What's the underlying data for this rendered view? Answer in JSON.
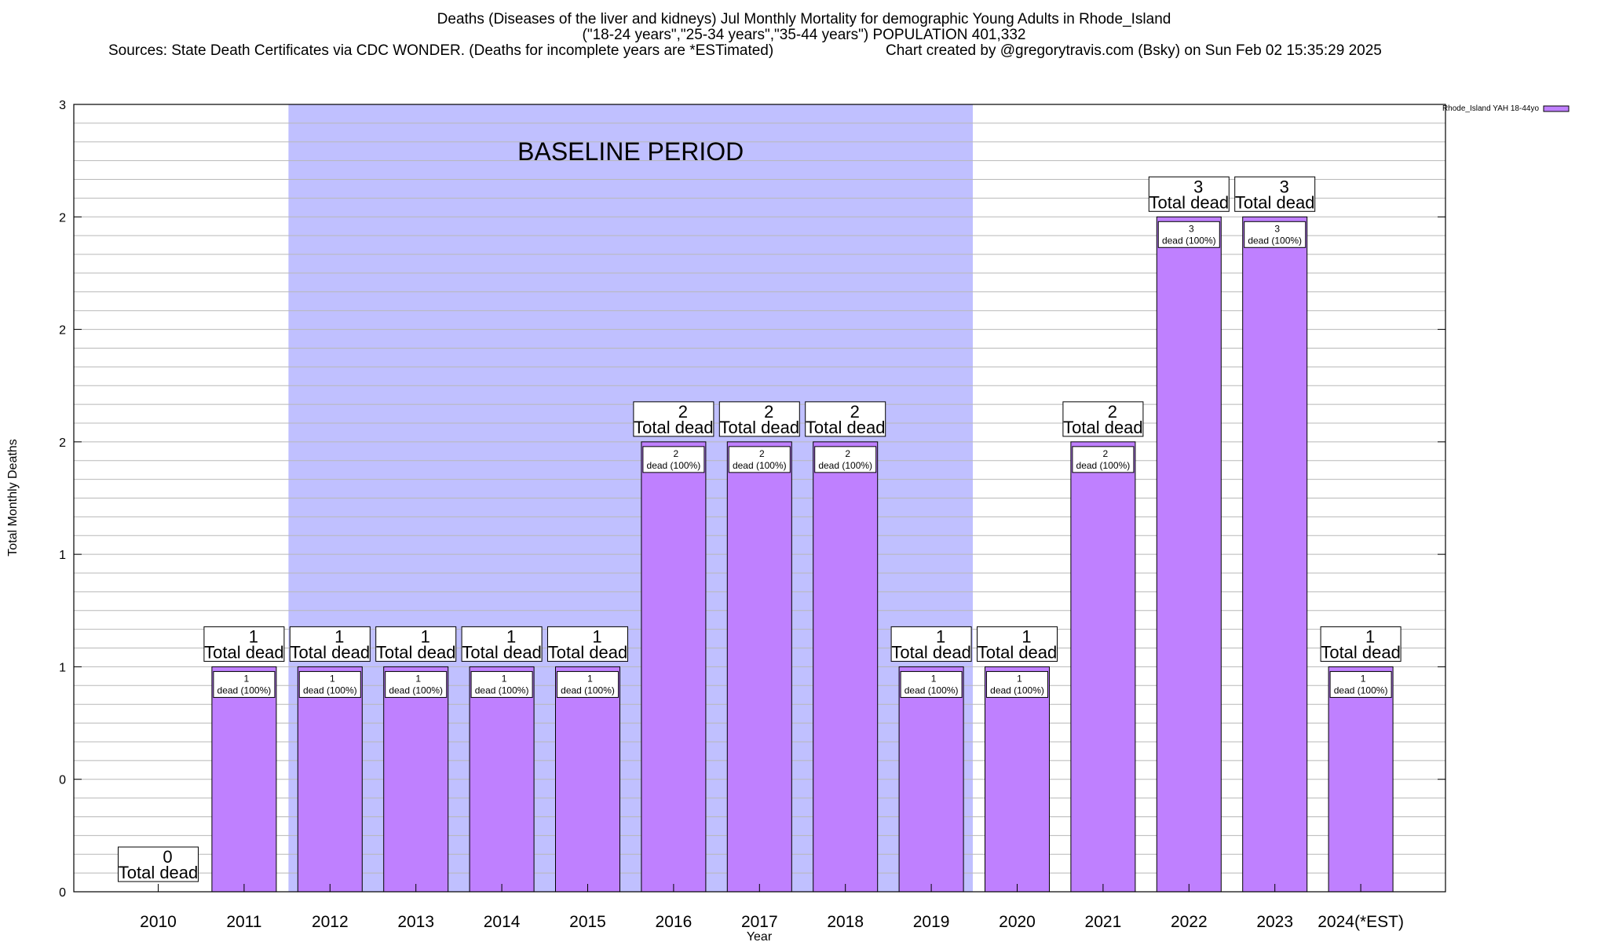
{
  "header": {
    "title_line1": "Deaths (Diseases of the liver and kidneys) Jul Monthly Mortality for demographic Young Adults in Rhode_Island",
    "title_line2": "(\"18-24 years\",\"25-34 years\",\"35-44 years\") POPULATION 401,332",
    "sources": "Sources: State Death Certificates via CDC WONDER. (Deaths for incomplete years are *ESTimated)",
    "credit": "Chart created by @gregorytravis.com (Bsky) on Sun Feb 02 15:35:29 2025"
  },
  "chart_data": {
    "type": "bar",
    "categories": [
      "2010",
      "2011",
      "2012",
      "2013",
      "2014",
      "2015",
      "2016",
      "2017",
      "2018",
      "2019",
      "2020",
      "2021",
      "2022",
      "2023",
      "2024(*EST)"
    ],
    "series": [
      {
        "name": "Rhode_Island YAH 18-44yo",
        "values": [
          0,
          1,
          1,
          1,
          1,
          1,
          2,
          2,
          2,
          1,
          1,
          2,
          3,
          3,
          1
        ],
        "color": "#bf80ff"
      }
    ],
    "total_labels": [
      "Total dead",
      "Total dead",
      "Total dead",
      "Total dead",
      "Total dead",
      "Total dead",
      "Total dead",
      "Total dead",
      "Total dead",
      "Total dead",
      "Total dead",
      "Total dead",
      "Total dead",
      "Total dead",
      "Total dead"
    ],
    "inner_labels": [
      "",
      "dead (100%)",
      "dead (100%)",
      "dead (100%)",
      "dead (100%)",
      "dead (100%)",
      "dead (100%)",
      "dead (100%)",
      "dead (100%)",
      "dead (100%)",
      "dead (100%)",
      "dead (100%)",
      "dead (100%)",
      "dead (100%)",
      "dead (100%)"
    ],
    "ytick_labels": [
      "0",
      "0",
      "1",
      "1",
      "2",
      "2",
      "2",
      "3"
    ],
    "ytick_values": [
      0,
      0.5,
      1,
      1.5,
      2,
      2.5,
      3,
      3.5
    ],
    "ylim": [
      0,
      3.5
    ],
    "xlabel": "Year",
    "ylabel": "Total Monthly Deaths",
    "baseline": {
      "label": "BASELINE PERIOD",
      "from": "2012",
      "to": "2019",
      "color": "#c0c0ff"
    },
    "grid": true,
    "legend_position": "top-right"
  }
}
